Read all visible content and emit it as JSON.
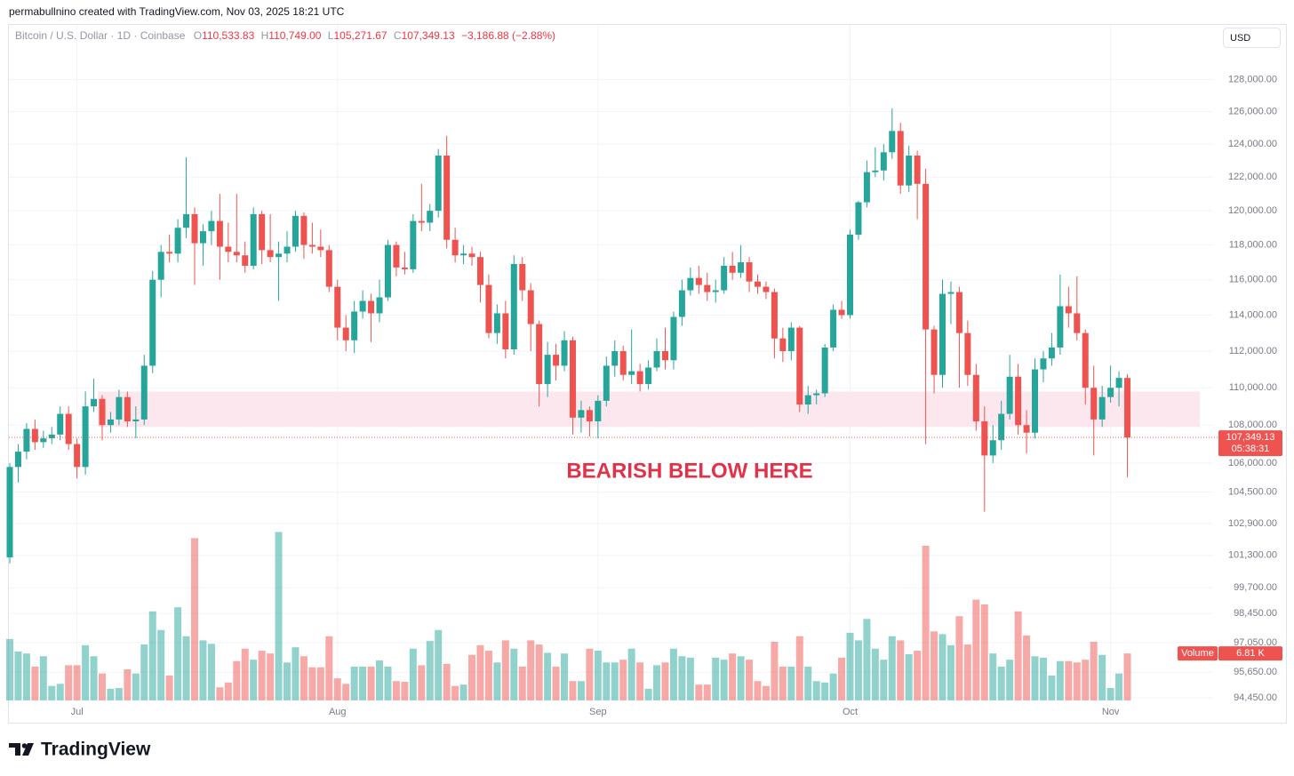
{
  "credit": "permabullnino created with TradingView.com, Nov 03, 2025 18:21 UTC",
  "symbol": "Bitcoin / U.S. Dollar · 1D · Coinbase",
  "ohlc_header": [
    {
      "key": "O",
      "value": "110,533.83"
    },
    {
      "key": "H",
      "value": "110,749.00"
    },
    {
      "key": "L",
      "value": "105,271.67"
    },
    {
      "key": "C",
      "value": "107,349.13"
    }
  ],
  "change": "−3,186.88 (−2.88%)",
  "currency": "USD",
  "brand": "TradingView",
  "chart_data": {
    "type": "candlestick",
    "annotation": "BEARISH BELOW HERE",
    "zone": [
      107900,
      109800
    ],
    "zone_color": "#fce4ec",
    "up_color": "#26a69a",
    "down_color": "#ef5350",
    "log_scale": true,
    "grid": true,
    "last_price_label": "107,349.13",
    "countdown": "05:38:31",
    "volume_label": "Volume",
    "volume_value_label": "6.81 K",
    "volume_ylim": [
      0,
      26
    ],
    "ylim": [
      94330,
      131480
    ],
    "yticks": [
      {
        "value": 128000,
        "label": "128,000.00"
      },
      {
        "value": 126000,
        "label": "126,000.00"
      },
      {
        "value": 124000,
        "label": "124,000.00"
      },
      {
        "value": 122000,
        "label": "122,000.00"
      },
      {
        "value": 120000,
        "label": "120,000.00"
      },
      {
        "value": 118000,
        "label": "118,000.00"
      },
      {
        "value": 116000,
        "label": "116,000.00"
      },
      {
        "value": 114000,
        "label": "114,000.00"
      },
      {
        "value": 112000,
        "label": "112,000.00"
      },
      {
        "value": 110000,
        "label": "110,000.00"
      },
      {
        "value": 108000,
        "label": "108,000.00"
      },
      {
        "value": 106000,
        "label": "106,000.00"
      },
      {
        "value": 104500,
        "label": "104,500.00"
      },
      {
        "value": 102900,
        "label": "102,900.00"
      },
      {
        "value": 101300,
        "label": "101,300.00"
      },
      {
        "value": 99700,
        "label": "99,700.00"
      },
      {
        "value": 98450,
        "label": "98,450.00"
      },
      {
        "value": 97050,
        "label": "97,050.00"
      },
      {
        "value": 95650,
        "label": "95,650.00"
      },
      {
        "value": 94450,
        "label": "94,450.00"
      }
    ],
    "categories": [
      null,
      null,
      null,
      null,
      null,
      null,
      null,
      null,
      "Jul",
      null,
      null,
      null,
      null,
      null,
      null,
      null,
      null,
      null,
      null,
      null,
      null,
      null,
      null,
      null,
      null,
      null,
      null,
      null,
      null,
      null,
      null,
      null,
      null,
      null,
      null,
      null,
      null,
      null,
      null,
      "Aug",
      null,
      null,
      null,
      null,
      null,
      null,
      null,
      null,
      null,
      null,
      null,
      null,
      null,
      null,
      null,
      null,
      null,
      null,
      null,
      null,
      null,
      null,
      null,
      null,
      null,
      null,
      null,
      null,
      null,
      null,
      "Sep",
      null,
      null,
      null,
      null,
      null,
      null,
      null,
      null,
      null,
      null,
      null,
      null,
      null,
      null,
      null,
      null,
      null,
      null,
      null,
      null,
      null,
      null,
      null,
      null,
      null,
      null,
      null,
      null,
      null,
      "Oct",
      null,
      null,
      null,
      null,
      null,
      null,
      null,
      null,
      null,
      null,
      null,
      null,
      null,
      null,
      null,
      null,
      null,
      null,
      null,
      null,
      null,
      null,
      null,
      null,
      null,
      null,
      null,
      null,
      null,
      null,
      "Nov",
      null,
      null
    ],
    "open": [
      101200,
      105800,
      106600,
      107800,
      107100,
      107300,
      107500,
      108600,
      107000,
      105800,
      109000,
      109400,
      108000,
      108300,
      109500,
      108200,
      108300,
      111200,
      116000,
      117600,
      117500,
      119000,
      119800,
      118100,
      118800,
      119400,
      117900,
      117600,
      117400,
      116800,
      119800,
      117700,
      117300,
      117500,
      117900,
      119700,
      118000,
      117900,
      117700,
      115600,
      113300,
      112600,
      114200,
      114800,
      114100,
      115000,
      118000,
      116700,
      116600,
      119400,
      119300,
      120000,
      123300,
      118300,
      117400,
      117500,
      117300,
      115700,
      113000,
      114100,
      112100,
      116900,
      115400,
      113500,
      110200,
      111800,
      111200,
      112600,
      108400,
      108800,
      108200,
      109300,
      111200,
      112000,
      110700,
      110900,
      110200,
      111100,
      112000,
      111500,
      113900,
      115400,
      116100,
      115700,
      115300,
      115400,
      116800,
      116400,
      117000,
      115900,
      115600,
      115300,
      112700,
      112000,
      113300,
      109100,
      109600,
      109700,
      112200,
      114300,
      114000,
      118600,
      120500,
      122300,
      122400,
      123500,
      124800,
      121500,
      123300,
      121600,
      113200,
      110700,
      115200,
      115300,
      113000,
      110700,
      108200,
      106400,
      107200,
      108600,
      110600,
      108000,
      107600,
      111000,
      111600,
      112200,
      114500,
      114100,
      113000,
      110000,
      108300,
      109500,
      110000,
      110533.83
    ],
    "high": [
      106000,
      107000,
      108100,
      108300,
      107700,
      107900,
      109000,
      109000,
      107300,
      109800,
      110500,
      109600,
      108700,
      109900,
      109800,
      109000,
      111800,
      116500,
      118000,
      118600,
      119500,
      123200,
      120200,
      119200,
      120000,
      121000,
      119300,
      121000,
      118200,
      120200,
      120000,
      119800,
      118200,
      118800,
      120000,
      119900,
      119300,
      118900,
      118000,
      116000,
      114000,
      114800,
      115400,
      115200,
      116000,
      118300,
      118200,
      117600,
      119800,
      121600,
      120400,
      123700,
      124500,
      119000,
      118000,
      117900,
      117600,
      116300,
      114600,
      114800,
      117400,
      117300,
      115800,
      113700,
      112500,
      112400,
      113100,
      112800,
      109300,
      109000,
      109600,
      111700,
      112600,
      112300,
      113200,
      111300,
      111500,
      112700,
      113300,
      114200,
      116000,
      116700,
      116800,
      116400,
      116000,
      117300,
      117600,
      118000,
      117300,
      116300,
      115900,
      115500,
      113300,
      113600,
      113400,
      110100,
      109900,
      112400,
      114600,
      114800,
      118900,
      120600,
      123000,
      123800,
      124000,
      126200,
      125300,
      123900,
      123600,
      122500,
      113400,
      116000,
      115900,
      115600,
      113700,
      111300,
      109000,
      108000,
      109300,
      111800,
      111300,
      108800,
      111600,
      112000,
      113000,
      116300,
      115600,
      116200,
      113200,
      111200,
      110100,
      111200,
      110900,
      110749
    ],
    "low": [
      100900,
      105000,
      106200,
      106700,
      106800,
      107000,
      107200,
      106700,
      105200,
      105400,
      108700,
      107200,
      107600,
      108000,
      107900,
      107300,
      108000,
      110800,
      115000,
      117000,
      117000,
      118400,
      115700,
      116800,
      118000,
      116000,
      117000,
      117000,
      116400,
      116600,
      116900,
      117000,
      114800,
      117000,
      117600,
      117200,
      117500,
      117300,
      115300,
      112600,
      112000,
      111900,
      113800,
      112500,
      113600,
      114800,
      116200,
      116300,
      116400,
      118800,
      118800,
      119600,
      117800,
      117000,
      116900,
      116800,
      114700,
      112700,
      112400,
      111600,
      111800,
      114800,
      112000,
      109000,
      109500,
      110400,
      110900,
      107500,
      107600,
      107400,
      107300,
      109000,
      110600,
      110400,
      110200,
      109800,
      109900,
      110900,
      111000,
      111000,
      113400,
      115100,
      115200,
      114800,
      114700,
      115200,
      116000,
      116100,
      115300,
      115200,
      114900,
      111600,
      111400,
      111500,
      108700,
      108600,
      109100,
      109500,
      112000,
      113800,
      113800,
      118300,
      120200,
      122000,
      121800,
      123100,
      121000,
      121100,
      119500,
      107000,
      109700,
      110000,
      113500,
      110000,
      110100,
      107700,
      103500,
      106000,
      106700,
      108300,
      107500,
      106500,
      107300,
      110300,
      111200,
      111800,
      113300,
      112600,
      109100,
      106400,
      107900,
      109200,
      109000,
      105271.67
    ],
    "close": [
      105800,
      106600,
      107800,
      107100,
      107300,
      107500,
      108600,
      107000,
      105800,
      109000,
      109400,
      108000,
      108300,
      109500,
      108200,
      108300,
      111200,
      116000,
      117600,
      117500,
      119000,
      119800,
      118100,
      118800,
      119400,
      117900,
      117600,
      117400,
      116800,
      119800,
      117700,
      117300,
      117500,
      117900,
      119700,
      118000,
      117900,
      117700,
      115600,
      113300,
      112600,
      114200,
      114800,
      114100,
      115000,
      118000,
      116700,
      116600,
      119400,
      119300,
      120000,
      123300,
      118300,
      117400,
      117500,
      117300,
      115700,
      113000,
      114100,
      112100,
      116900,
      115400,
      113500,
      110200,
      111800,
      111200,
      112600,
      108400,
      108800,
      108200,
      109300,
      111200,
      112000,
      110700,
      110900,
      110200,
      111100,
      112000,
      111500,
      113900,
      115400,
      116100,
      115700,
      115300,
      115400,
      116800,
      116400,
      117000,
      115900,
      115600,
      115300,
      112700,
      112000,
      113300,
      109100,
      109600,
      109700,
      112200,
      114300,
      114000,
      118600,
      120500,
      122300,
      122400,
      123500,
      124800,
      121500,
      123300,
      121600,
      113200,
      110700,
      115200,
      115300,
      113000,
      110700,
      108200,
      106400,
      107200,
      108600,
      110600,
      108000,
      107600,
      111000,
      111600,
      112200,
      114500,
      114100,
      113000,
      110000,
      108300,
      109500,
      110000,
      110536.01,
      107349.13
    ],
    "volume": [
      8.9,
      7.1,
      6.8,
      4.9,
      6.4,
      2.1,
      2.4,
      5.1,
      5.1,
      8.0,
      6.4,
      3.9,
      1.7,
      1.8,
      4.5,
      3.9,
      8.1,
      12.9,
      10.2,
      3.6,
      13.5,
      9.3,
      23.5,
      8.7,
      8.2,
      1.9,
      2.6,
      5.7,
      7.5,
      5.9,
      7.2,
      6.8,
      24.4,
      5.5,
      7.7,
      6.4,
      4.8,
      4.8,
      9.3,
      3.2,
      2.4,
      4.9,
      4.9,
      4.9,
      5.8,
      4.9,
      2.8,
      2.7,
      7.5,
      5.1,
      8.6,
      10.2,
      5.3,
      2.1,
      2.3,
      6.6,
      8.0,
      7.2,
      5.5,
      8.7,
      7.5,
      4.9,
      8.7,
      8.1,
      6.9,
      4.9,
      6.8,
      2.8,
      2.8,
      7.5,
      7.2,
      5.5,
      5.5,
      5.9,
      7.5,
      5.5,
      1.7,
      5.1,
      5.5,
      7.5,
      6.4,
      6.2,
      2.3,
      2.3,
      6.2,
      5.9,
      6.8,
      6.4,
      5.9,
      2.8,
      2.1,
      8.5,
      4.9,
      4.9,
      9.3,
      4.9,
      2.8,
      2.6,
      3.9,
      6.2,
      9.8,
      8.7,
      11.8,
      7.5,
      5.9,
      9.3,
      8.7,
      6.7,
      7.2,
      22.4,
      10.0,
      9.6,
      8.0,
      12.2,
      8.1,
      14.6,
      13.9,
      6.8,
      4.9,
      5.9,
      12.9,
      9.4,
      6.4,
      6.2,
      3.6,
      5.7,
      5.7,
      5.5,
      5.9,
      8.5,
      6.6,
      1.8,
      3.9,
      6.81
    ]
  }
}
